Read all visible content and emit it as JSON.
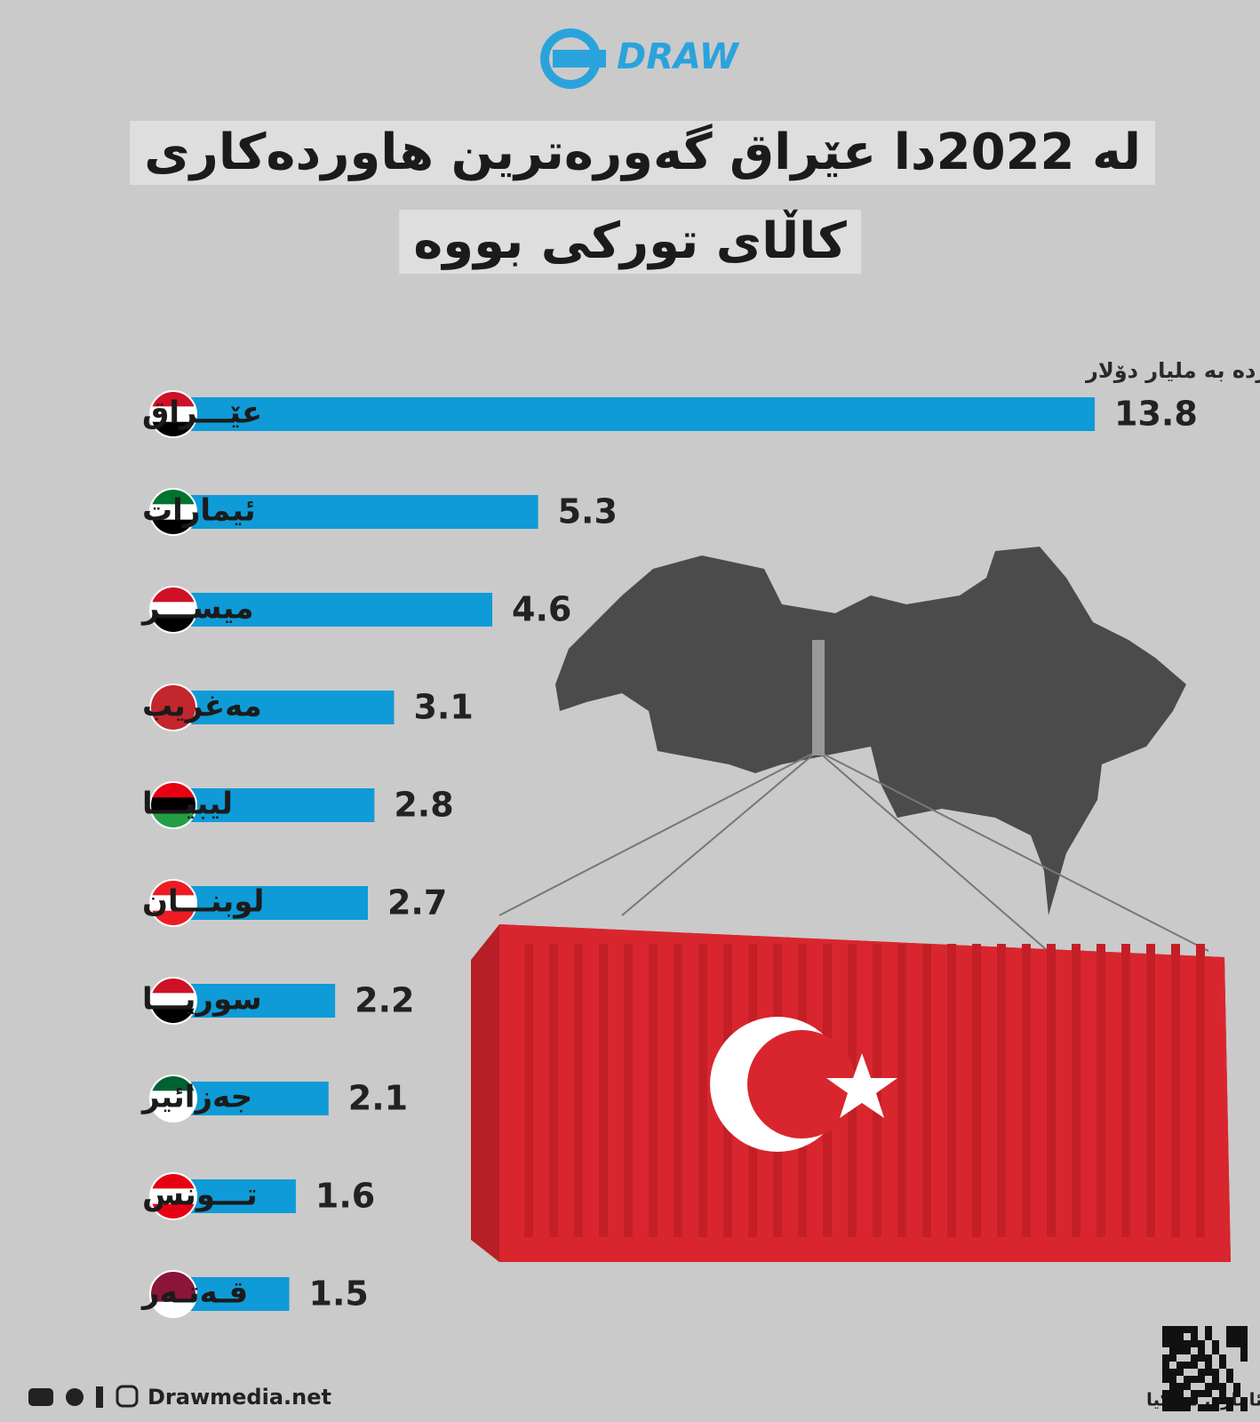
{
  "logo": "DRAW",
  "chart_data": {
    "type": "bar",
    "orientation": "horizontal",
    "title_lines": [
      "لە 2022دا عێراق گەورەترین هاوردەکاری",
      "کاڵای تورکی بووە"
    ],
    "subtitle": "قەبارەی هاوردە بە ملیار دۆلار",
    "categories": [
      "عێـــراق",
      "ئیمارات",
      "میســـر",
      "مەغریب",
      "لیبیـــا",
      "لوبنـــان",
      "سوریـــا",
      "جەزائیر",
      "تـــونس",
      "قـەتـەر"
    ],
    "values": [
      13.8,
      5.3,
      4.6,
      3.1,
      2.8,
      2.7,
      2.2,
      2.1,
      1.6,
      1.5
    ],
    "color": "#0f9bd7"
  },
  "footer": {
    "website": "Drawmedia.net",
    "source": "سەرچاوە/ناوەندی ئاماری تورکیا"
  }
}
